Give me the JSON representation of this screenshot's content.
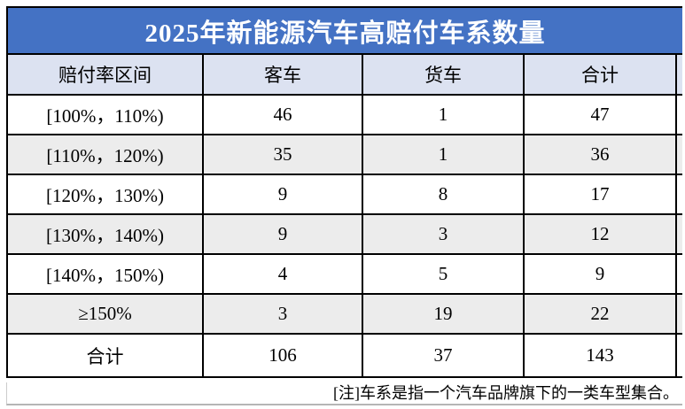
{
  "title": "2025年新能源汽车高赔付车系数量",
  "table": {
    "columns": [
      "赔付率区间",
      "客车",
      "货车",
      "合计"
    ],
    "rows": [
      [
        "[100%，110%)",
        "46",
        "1",
        "47"
      ],
      [
        "[110%，120%)",
        "35",
        "1",
        "36"
      ],
      [
        "[120%，130%)",
        "9",
        "8",
        "17"
      ],
      [
        "[130%，140%)",
        "9",
        "3",
        "12"
      ],
      [
        "[140%，150%)",
        "4",
        "5",
        "9"
      ],
      [
        "≥150%",
        "3",
        "19",
        "22"
      ],
      [
        "合计",
        "106",
        "37",
        "143"
      ]
    ]
  },
  "footnote": "[注]车系是指一个汽车品牌旗下的一类车型集合。",
  "colors": {
    "title_bg": "#4472C4",
    "title_text": "#FFFFFF",
    "header_bg": "#DCE2F1",
    "stripe_bg": "#ECECEC",
    "border": "#000000"
  },
  "chart_data": {
    "type": "table",
    "title": "2025年新能源汽车高赔付车系数量",
    "columns": [
      "赔付率区间",
      "客车",
      "货车",
      "合计"
    ],
    "rows": [
      [
        "[100%，110%)",
        46,
        1,
        47
      ],
      [
        "[110%，120%)",
        35,
        1,
        36
      ],
      [
        "[120%，130%)",
        9,
        8,
        17
      ],
      [
        "[130%，140%)",
        9,
        3,
        12
      ],
      [
        "[140%，150%)",
        4,
        5,
        9
      ],
      [
        "≥150%",
        3,
        19,
        22
      ],
      [
        "合计",
        106,
        37,
        143
      ]
    ],
    "note": "[注]车系是指一个汽车品牌旗下的一类车型集合。"
  }
}
